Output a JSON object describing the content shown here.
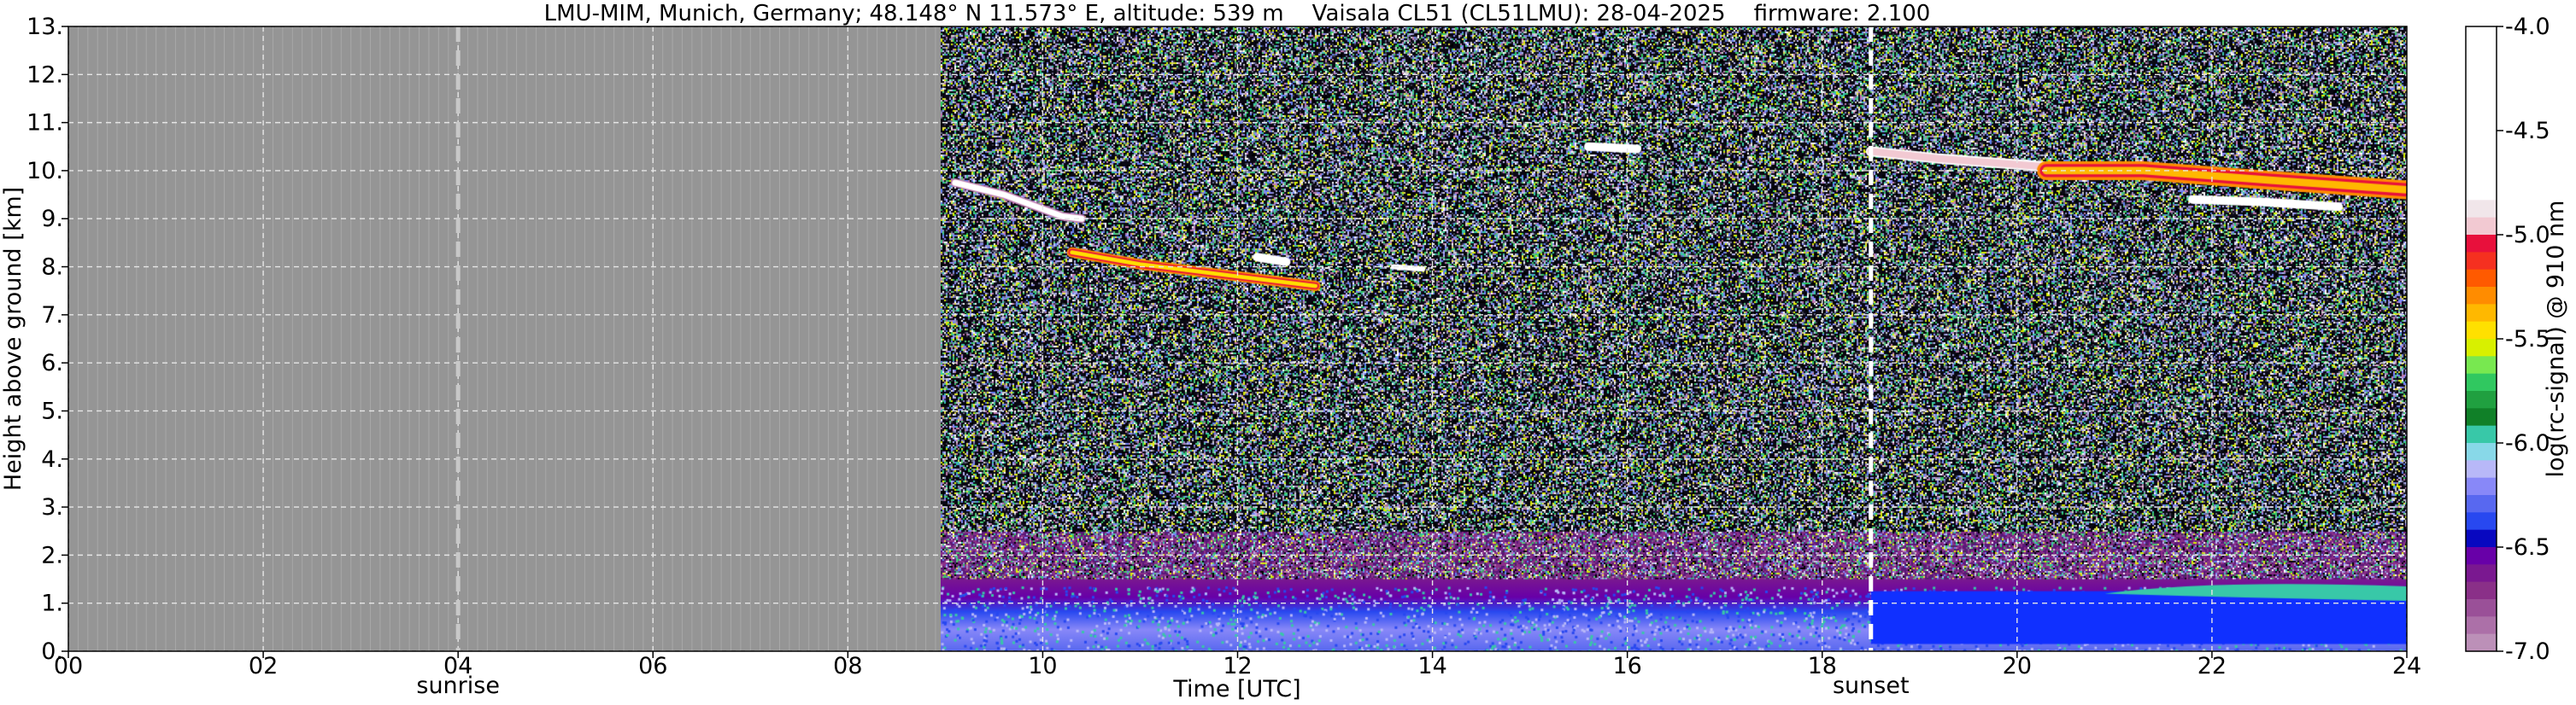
{
  "chart_data": {
    "type": "heatmap",
    "title": "LMU-MIM, Munich, Germany; 48.148° N 11.573° E, altitude: 539 m    Vaisala CL51 (CL51LMU): 28-04-2025    firmware: 2.100",
    "xlabel": "Time [UTC]",
    "ylabel": "Height above ground [km]",
    "xlim": [
      0,
      24
    ],
    "ylim": [
      0,
      13
    ],
    "x_ticks": [
      "00",
      "02",
      "04",
      "06",
      "08",
      "10",
      "12",
      "14",
      "16",
      "18",
      "20",
      "22",
      "24"
    ],
    "x_tick_values": [
      0,
      2,
      4,
      6,
      8,
      10,
      12,
      14,
      16,
      18,
      20,
      22,
      24
    ],
    "y_ticks": [
      "0.",
      "1.",
      "2.",
      "3.",
      "4.",
      "5.",
      "6.",
      "7.",
      "8.",
      "9.",
      "10.",
      "11.",
      "12.",
      "13."
    ],
    "y_tick_values": [
      0,
      1,
      2,
      3,
      4,
      5,
      6,
      7,
      8,
      9,
      10,
      11,
      12,
      13
    ],
    "grid": true,
    "no_data_until_hour": 8.95,
    "markers": [
      {
        "label": "sunrise",
        "time": 4.0,
        "color": "#c8c8c8"
      },
      {
        "label": "sunset",
        "time": 18.5,
        "color": "#ffffff"
      }
    ],
    "colorbar": {
      "label": "log(rc-signal) @ 910 nm",
      "range": [
        -7.0,
        -4.0
      ],
      "tick_labels": [
        "-4.0",
        "-4.5",
        "-5.0",
        "-5.5",
        "-6.0",
        "-6.5",
        "-7.0"
      ],
      "tick_values": [
        -4.0,
        -4.5,
        -5.0,
        -5.5,
        -6.0,
        -6.5,
        -7.0
      ],
      "colors_top_to_bottom": [
        "#ffffff",
        "#ffffff",
        "#ffffff",
        "#ffffff",
        "#ffffff",
        "#ffffff",
        "#ffffff",
        "#ffffff",
        "#ffffff",
        "#ffffff",
        "#f1e6ea",
        "#f2c9d2",
        "#e8103c",
        "#f53020",
        "#ff5a00",
        "#ff8c00",
        "#ffb800",
        "#ffe000",
        "#d8f000",
        "#78e850",
        "#30c860",
        "#20a040",
        "#108028",
        "#38c8a8",
        "#88d8e8",
        "#b8b8f8",
        "#8888f8",
        "#5868f0",
        "#2848f0",
        "#0808c0",
        "#6800a8",
        "#7a1890",
        "#8a3088",
        "#9a5098",
        "#ac70a8",
        "#bc90b8"
      ]
    },
    "features": [
      {
        "name": "boundary layer",
        "time_range": [
          8.95,
          24.0
        ],
        "height_range_km": [
          0.0,
          1.4
        ]
      },
      {
        "name": "cirrus",
        "time_range": [
          9.0,
          12.8
        ],
        "height_range_km": [
          7.5,
          9.8
        ]
      },
      {
        "name": "cirrus",
        "time_range": [
          15.5,
          16.1
        ],
        "height_range_km": [
          10.3,
          10.6
        ]
      },
      {
        "name": "cirrus",
        "time_range": [
          18.5,
          24.0
        ],
        "height_range_km": [
          9.3,
          10.5
        ]
      }
    ]
  }
}
